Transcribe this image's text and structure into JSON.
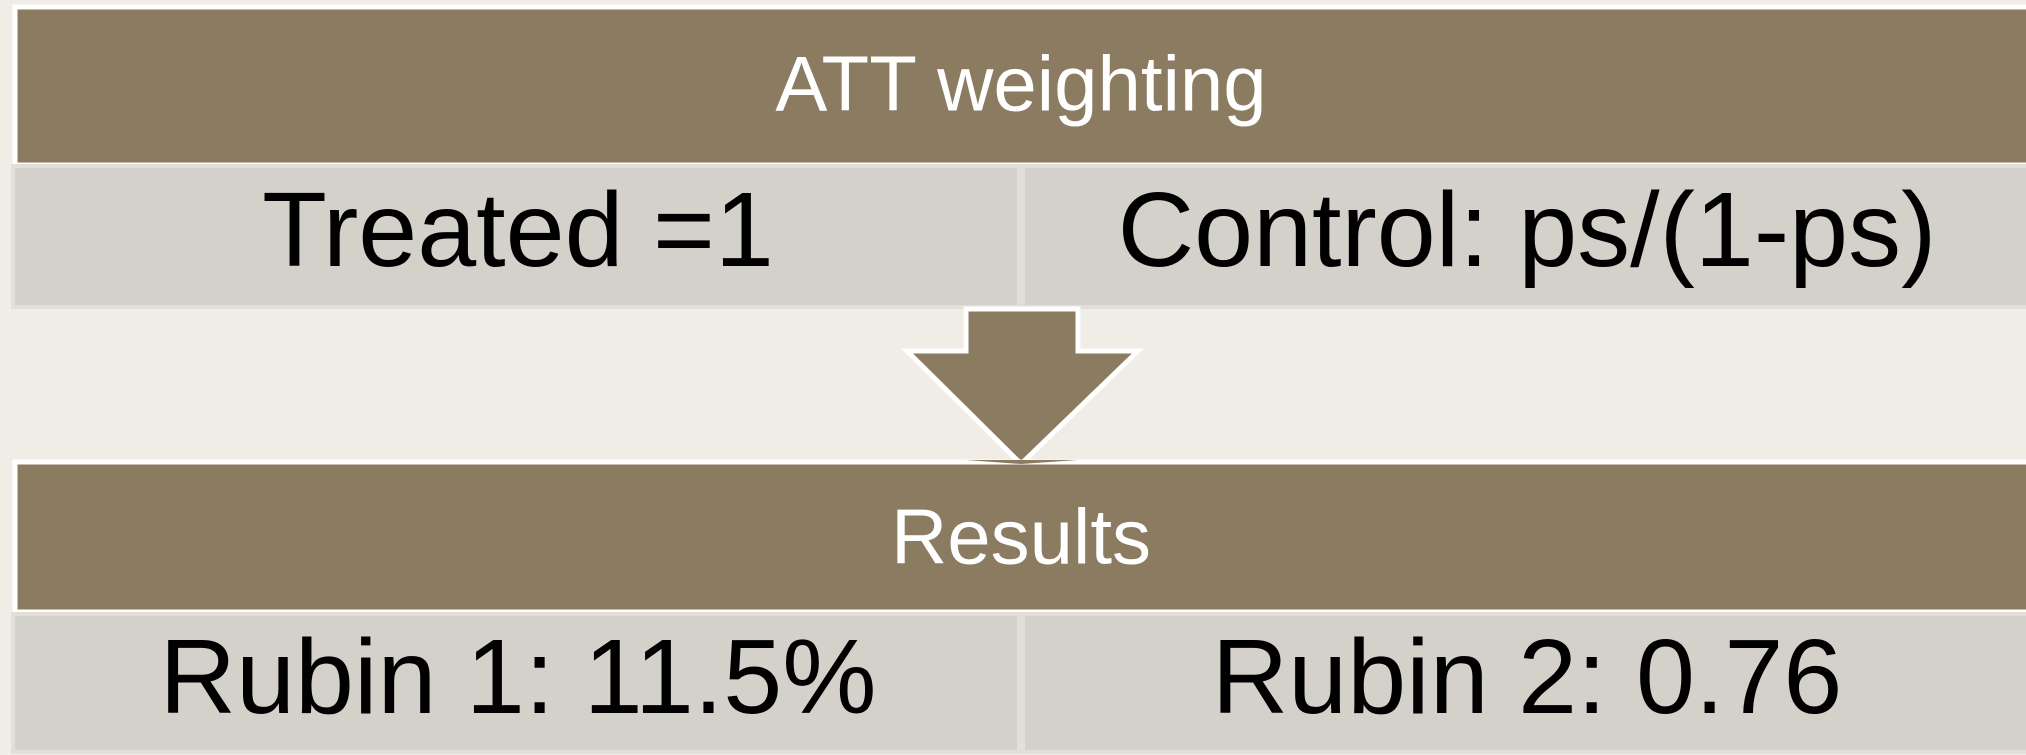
{
  "top_section": {
    "title": "ATT weighting",
    "cells": [
      "Treated =1",
      "Control: ps/(1-ps)"
    ]
  },
  "bottom_section": {
    "title": "Results",
    "cells": [
      "Rubin 1: 11.5%",
      "Rubin 2: 0.76"
    ]
  }
}
